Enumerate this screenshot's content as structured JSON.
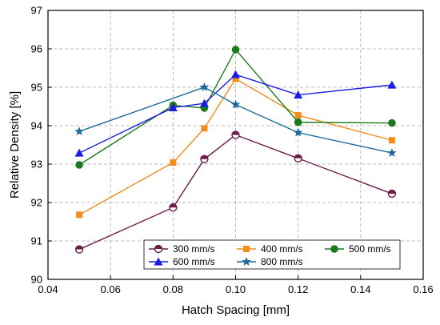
{
  "chart_data": {
    "type": "line",
    "xlabel": "Hatch Spacing [mm]",
    "ylabel": "Relative Density [%]",
    "xlim": [
      0.04,
      0.16
    ],
    "ylim": [
      90,
      97
    ],
    "x_ticks": [
      "0.04",
      "0.06",
      "0.08",
      "0.10",
      "0.12",
      "0.14",
      "0.16"
    ],
    "y_ticks": [
      "90",
      "91",
      "92",
      "93",
      "94",
      "95",
      "96",
      "97"
    ],
    "x": [
      0.05,
      0.08,
      0.09,
      0.1,
      0.12,
      0.15
    ],
    "grid": true,
    "legend_position": "bottom-right",
    "series": [
      {
        "name": "300 mm/s",
        "color": "#6b1d4a",
        "marker": "circle-half",
        "values": [
          90.78,
          91.87,
          93.13,
          93.76,
          93.15,
          92.23
        ]
      },
      {
        "name": "400 mm/s",
        "color": "#f28c1c",
        "marker": "square",
        "values": [
          91.68,
          93.04,
          93.93,
          95.22,
          94.27,
          93.62
        ]
      },
      {
        "name": "500 mm/s",
        "color": "#1c7a1c",
        "marker": "circle",
        "values": [
          92.98,
          94.53,
          94.46,
          95.98,
          94.09,
          94.07
        ]
      },
      {
        "name": "600 mm/s",
        "color": "#1c1ce6",
        "marker": "triangle",
        "values": [
          93.29,
          94.47,
          94.58,
          95.33,
          94.8,
          95.06
        ]
      },
      {
        "name": "800 mm/s",
        "color": "#1c6b9a",
        "marker": "star",
        "values": [
          93.85,
          null,
          95.0,
          94.55,
          93.82,
          93.29
        ]
      }
    ]
  }
}
